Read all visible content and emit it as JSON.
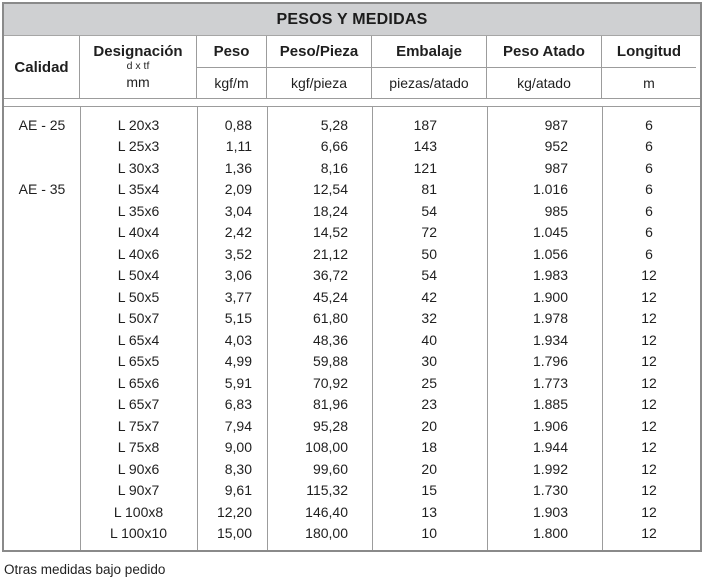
{
  "title": "PESOS Y MEDIDAS",
  "footer_note": "Otras medidas bajo pedido",
  "colors": {
    "title_bar_bg": "#cfd0d2",
    "border_outer": "#8a8a8a",
    "border_inner": "#9c9c9c",
    "text": "#1f1f1f"
  },
  "header": {
    "calidad": "Calidad",
    "designacion": {
      "label": "Designación",
      "sub": "d x tf",
      "unit": "mm"
    },
    "columns": [
      {
        "label": "Peso",
        "unit": "kgf/m"
      },
      {
        "label": "Peso/Pieza",
        "unit": "kgf/pieza"
      },
      {
        "label": "Embalaje",
        "unit": "piezas/atado"
      },
      {
        "label": "Peso Atado",
        "unit": "kg/atado"
      },
      {
        "label": "Longitud",
        "unit": "m"
      }
    ]
  },
  "table": {
    "rows": [
      {
        "calidad": "AE - 25",
        "designacion": "L 20x3",
        "peso": "0,88",
        "peso_pieza": "5,28",
        "embalaje": "187",
        "peso_atado": "987",
        "longitud": "6"
      },
      {
        "calidad": "",
        "designacion": "L 25x3",
        "peso": "1,11",
        "peso_pieza": "6,66",
        "embalaje": "143",
        "peso_atado": "952",
        "longitud": "6"
      },
      {
        "calidad": "",
        "designacion": "L 30x3",
        "peso": "1,36",
        "peso_pieza": "8,16",
        "embalaje": "121",
        "peso_atado": "987",
        "longitud": "6"
      },
      {
        "calidad": "AE - 35",
        "designacion": "L 35x4",
        "peso": "2,09",
        "peso_pieza": "12,54",
        "embalaje": "81",
        "peso_atado": "1.016",
        "longitud": "6"
      },
      {
        "calidad": "",
        "designacion": "L 35x6",
        "peso": "3,04",
        "peso_pieza": "18,24",
        "embalaje": "54",
        "peso_atado": "985",
        "longitud": "6"
      },
      {
        "calidad": "",
        "designacion": "L 40x4",
        "peso": "2,42",
        "peso_pieza": "14,52",
        "embalaje": "72",
        "peso_atado": "1.045",
        "longitud": "6"
      },
      {
        "calidad": "",
        "designacion": "L 40x6",
        "peso": "3,52",
        "peso_pieza": "21,12",
        "embalaje": "50",
        "peso_atado": "1.056",
        "longitud": "6"
      },
      {
        "calidad": "",
        "designacion": "L 50x4",
        "peso": "3,06",
        "peso_pieza": "36,72",
        "embalaje": "54",
        "peso_atado": "1.983",
        "longitud": "12"
      },
      {
        "calidad": "",
        "designacion": "L 50x5",
        "peso": "3,77",
        "peso_pieza": "45,24",
        "embalaje": "42",
        "peso_atado": "1.900",
        "longitud": "12"
      },
      {
        "calidad": "",
        "designacion": "L 50x7",
        "peso": "5,15",
        "peso_pieza": "61,80",
        "embalaje": "32",
        "peso_atado": "1.978",
        "longitud": "12"
      },
      {
        "calidad": "",
        "designacion": "L 65x4",
        "peso": "4,03",
        "peso_pieza": "48,36",
        "embalaje": "40",
        "peso_atado": "1.934",
        "longitud": "12"
      },
      {
        "calidad": "",
        "designacion": "L 65x5",
        "peso": "4,99",
        "peso_pieza": "59,88",
        "embalaje": "30",
        "peso_atado": "1.796",
        "longitud": "12"
      },
      {
        "calidad": "",
        "designacion": "L 65x6",
        "peso": "5,91",
        "peso_pieza": "70,92",
        "embalaje": "25",
        "peso_atado": "1.773",
        "longitud": "12"
      },
      {
        "calidad": "",
        "designacion": "L 65x7",
        "peso": "6,83",
        "peso_pieza": "81,96",
        "embalaje": "23",
        "peso_atado": "1.885",
        "longitud": "12"
      },
      {
        "calidad": "",
        "designacion": "L 75x7",
        "peso": "7,94",
        "peso_pieza": "95,28",
        "embalaje": "20",
        "peso_atado": "1.906",
        "longitud": "12"
      },
      {
        "calidad": "",
        "designacion": "L 75x8",
        "peso": "9,00",
        "peso_pieza": "108,00",
        "embalaje": "18",
        "peso_atado": "1.944",
        "longitud": "12"
      },
      {
        "calidad": "",
        "designacion": "L 90x6",
        "peso": "8,30",
        "peso_pieza": "99,60",
        "embalaje": "20",
        "peso_atado": "1.992",
        "longitud": "12"
      },
      {
        "calidad": "",
        "designacion": "L 90x7",
        "peso": "9,61",
        "peso_pieza": "115,32",
        "embalaje": "15",
        "peso_atado": "1.730",
        "longitud": "12"
      },
      {
        "calidad": "",
        "designacion": "L 100x8",
        "peso": "12,20",
        "peso_pieza": "146,40",
        "embalaje": "13",
        "peso_atado": "1.903",
        "longitud": "12"
      },
      {
        "calidad": "",
        "designacion": "L 100x10",
        "peso": "15,00",
        "peso_pieza": "180,00",
        "embalaje": "10",
        "peso_atado": "1.800",
        "longitud": "12"
      }
    ]
  }
}
